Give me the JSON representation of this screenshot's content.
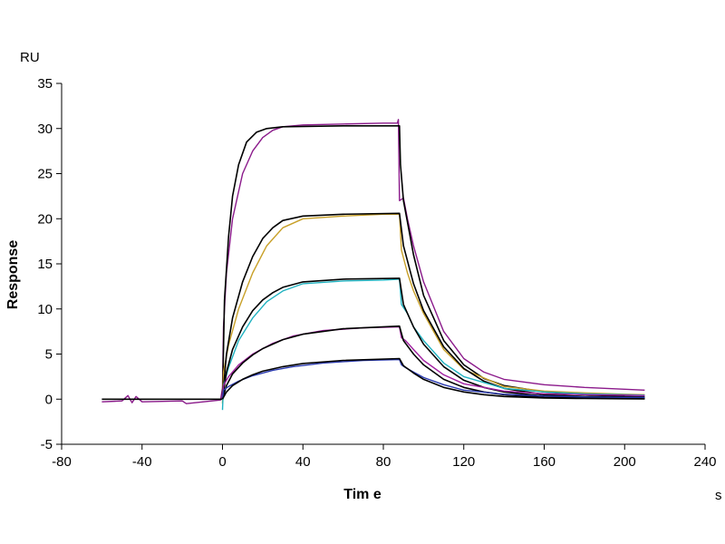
{
  "chart_data": {
    "type": "line",
    "title": "",
    "xlabel": "Tim e",
    "ylabel": "Response",
    "x_unit": "s",
    "y_unit": "RU",
    "xlim": [
      -80,
      240
    ],
    "ylim": [
      -5,
      35
    ],
    "x_ticks": [
      -80,
      -40,
      0,
      40,
      80,
      120,
      160,
      200,
      240
    ],
    "y_ticks": [
      -5,
      0,
      5,
      10,
      15,
      20,
      25,
      30,
      35
    ],
    "grid": false,
    "legend": "none",
    "series": [
      {
        "color": "#8b1a8b",
        "points": [
          [
            -60,
            -0.3
          ],
          [
            -50,
            -0.2
          ],
          [
            -47,
            0.4
          ],
          [
            -45,
            -0.4
          ],
          [
            -43,
            0.3
          ],
          [
            -40,
            -0.3
          ],
          [
            -20,
            -0.2
          ],
          [
            -18,
            -0.5
          ],
          [
            -1,
            -0.1
          ],
          [
            0,
            1.2
          ],
          [
            0.5,
            8
          ],
          [
            2,
            14
          ],
          [
            5,
            20
          ],
          [
            10,
            25
          ],
          [
            15,
            27.5
          ],
          [
            20,
            29
          ],
          [
            25,
            29.8
          ],
          [
            30,
            30.2
          ],
          [
            40,
            30.4
          ],
          [
            60,
            30.5
          ],
          [
            80,
            30.6
          ],
          [
            87,
            30.6
          ],
          [
            87.5,
            31
          ],
          [
            88,
            22
          ],
          [
            90,
            22.3
          ],
          [
            92,
            20
          ],
          [
            95,
            17
          ],
          [
            100,
            13
          ],
          [
            110,
            7.5
          ],
          [
            120,
            4.5
          ],
          [
            130,
            3
          ],
          [
            140,
            2.2
          ],
          [
            160,
            1.6
          ],
          [
            180,
            1.3
          ],
          [
            200,
            1.1
          ],
          [
            210,
            1.0
          ]
        ]
      },
      {
        "color": "#000000",
        "points": [
          [
            -60,
            0
          ],
          [
            -1,
            0
          ],
          [
            0,
            0
          ],
          [
            1,
            11
          ],
          [
            3,
            18
          ],
          [
            5,
            22.5
          ],
          [
            8,
            26
          ],
          [
            12,
            28.5
          ],
          [
            17,
            29.6
          ],
          [
            22,
            30
          ],
          [
            30,
            30.2
          ],
          [
            60,
            30.3
          ],
          [
            88,
            30.3
          ],
          [
            88.5,
            26
          ],
          [
            90,
            22
          ],
          [
            95,
            16
          ],
          [
            100,
            11.5
          ],
          [
            110,
            6.5
          ],
          [
            120,
            3.8
          ],
          [
            130,
            2.3
          ],
          [
            140,
            1.5
          ],
          [
            160,
            0.8
          ],
          [
            180,
            0.5
          ],
          [
            200,
            0.3
          ],
          [
            210,
            0.25
          ]
        ]
      },
      {
        "color": "#c8a028",
        "points": [
          [
            0,
            -0.5
          ],
          [
            0.5,
            3
          ],
          [
            3,
            6
          ],
          [
            8,
            10
          ],
          [
            15,
            14
          ],
          [
            22,
            17
          ],
          [
            30,
            19
          ],
          [
            40,
            20
          ],
          [
            60,
            20.3
          ],
          [
            80,
            20.5
          ],
          [
            88,
            20.5
          ],
          [
            89,
            16.5
          ],
          [
            92,
            14
          ],
          [
            95,
            12
          ],
          [
            100,
            9.5
          ],
          [
            110,
            5.5
          ],
          [
            120,
            3.3
          ],
          [
            140,
            1.4
          ],
          [
            160,
            0.9
          ],
          [
            180,
            0.7
          ],
          [
            200,
            0.55
          ],
          [
            210,
            0.5
          ]
        ]
      },
      {
        "color": "#000000",
        "points": [
          [
            0,
            0
          ],
          [
            2,
            5
          ],
          [
            5,
            9
          ],
          [
            10,
            13
          ],
          [
            15,
            15.8
          ],
          [
            20,
            17.8
          ],
          [
            25,
            19
          ],
          [
            30,
            19.8
          ],
          [
            40,
            20.3
          ],
          [
            60,
            20.5
          ],
          [
            88,
            20.6
          ],
          [
            90,
            17
          ],
          [
            95,
            12.8
          ],
          [
            100,
            9.8
          ],
          [
            110,
            5.8
          ],
          [
            120,
            3.4
          ],
          [
            130,
            2
          ],
          [
            140,
            1.2
          ],
          [
            160,
            0.5
          ],
          [
            180,
            0.3
          ],
          [
            200,
            0.2
          ],
          [
            210,
            0.15
          ]
        ]
      },
      {
        "color": "#20b2c0",
        "points": [
          [
            0,
            -1.2
          ],
          [
            0.5,
            1.5
          ],
          [
            3,
            3.5
          ],
          [
            8,
            6.5
          ],
          [
            15,
            9
          ],
          [
            22,
            10.8
          ],
          [
            30,
            12
          ],
          [
            40,
            12.8
          ],
          [
            60,
            13.1
          ],
          [
            80,
            13.2
          ],
          [
            88,
            13.3
          ],
          [
            89,
            10.5
          ],
          [
            92,
            9.5
          ],
          [
            95,
            8
          ],
          [
            100,
            6.5
          ],
          [
            110,
            4
          ],
          [
            120,
            2.5
          ],
          [
            140,
            1.2
          ],
          [
            160,
            0.8
          ],
          [
            180,
            0.6
          ],
          [
            200,
            0.5
          ],
          [
            210,
            0.45
          ]
        ]
      },
      {
        "color": "#000000",
        "points": [
          [
            0,
            0
          ],
          [
            2,
            3
          ],
          [
            5,
            5.5
          ],
          [
            10,
            8
          ],
          [
            15,
            9.8
          ],
          [
            20,
            11
          ],
          [
            25,
            11.8
          ],
          [
            30,
            12.4
          ],
          [
            40,
            13
          ],
          [
            60,
            13.3
          ],
          [
            88,
            13.4
          ],
          [
            90,
            10.5
          ],
          [
            95,
            8
          ],
          [
            100,
            6.1
          ],
          [
            110,
            3.6
          ],
          [
            120,
            2.1
          ],
          [
            130,
            1.3
          ],
          [
            140,
            0.8
          ],
          [
            160,
            0.35
          ],
          [
            180,
            0.2
          ],
          [
            200,
            0.12
          ],
          [
            210,
            0.1
          ]
        ]
      },
      {
        "color": "#a020a0",
        "points": [
          [
            0,
            0.2
          ],
          [
            0.5,
            1.5
          ],
          [
            3,
            2.5
          ],
          [
            8,
            3.8
          ],
          [
            15,
            5
          ],
          [
            25,
            6.2
          ],
          [
            35,
            7
          ],
          [
            50,
            7.6
          ],
          [
            70,
            7.9
          ],
          [
            88,
            8.0
          ],
          [
            89,
            6.8
          ],
          [
            91,
            6.5
          ],
          [
            95,
            5.5
          ],
          [
            100,
            4.3
          ],
          [
            110,
            2.7
          ],
          [
            120,
            1.7
          ],
          [
            140,
            0.9
          ],
          [
            160,
            0.6
          ],
          [
            180,
            0.5
          ],
          [
            200,
            0.45
          ],
          [
            210,
            0.4
          ]
        ]
      },
      {
        "color": "#000000",
        "points": [
          [
            0,
            0
          ],
          [
            2,
            1.5
          ],
          [
            5,
            2.8
          ],
          [
            10,
            4
          ],
          [
            15,
            4.9
          ],
          [
            20,
            5.6
          ],
          [
            30,
            6.6
          ],
          [
            40,
            7.2
          ],
          [
            60,
            7.8
          ],
          [
            88,
            8.1
          ],
          [
            90,
            6.5
          ],
          [
            95,
            5
          ],
          [
            100,
            3.8
          ],
          [
            110,
            2.2
          ],
          [
            120,
            1.3
          ],
          [
            130,
            0.8
          ],
          [
            140,
            0.5
          ],
          [
            160,
            0.2
          ],
          [
            180,
            0.12
          ],
          [
            200,
            0.08
          ],
          [
            210,
            0.06
          ]
        ]
      },
      {
        "color": "#2a3ab0",
        "points": [
          [
            0,
            0
          ],
          [
            0.5,
            1
          ],
          [
            3,
            1.4
          ],
          [
            8,
            2
          ],
          [
            15,
            2.6
          ],
          [
            25,
            3.2
          ],
          [
            35,
            3.6
          ],
          [
            50,
            4
          ],
          [
            70,
            4.3
          ],
          [
            88,
            4.4
          ],
          [
            89,
            3.8
          ],
          [
            91,
            3.5
          ],
          [
            95,
            3
          ],
          [
            100,
            2.4
          ],
          [
            110,
            1.6
          ],
          [
            120,
            1
          ],
          [
            140,
            0.55
          ],
          [
            160,
            0.35
          ],
          [
            180,
            0.25
          ],
          [
            200,
            0.2
          ],
          [
            210,
            0.2
          ]
        ]
      },
      {
        "color": "#000000",
        "points": [
          [
            0,
            0
          ],
          [
            2,
            0.8
          ],
          [
            5,
            1.5
          ],
          [
            10,
            2.2
          ],
          [
            15,
            2.7
          ],
          [
            20,
            3.1
          ],
          [
            30,
            3.6
          ],
          [
            40,
            3.95
          ],
          [
            60,
            4.3
          ],
          [
            88,
            4.5
          ],
          [
            90,
            3.7
          ],
          [
            95,
            2.9
          ],
          [
            100,
            2.2
          ],
          [
            110,
            1.3
          ],
          [
            120,
            0.8
          ],
          [
            130,
            0.5
          ],
          [
            140,
            0.3
          ],
          [
            160,
            0.13
          ],
          [
            180,
            0.08
          ],
          [
            200,
            0.05
          ],
          [
            210,
            0.04
          ]
        ]
      }
    ]
  }
}
